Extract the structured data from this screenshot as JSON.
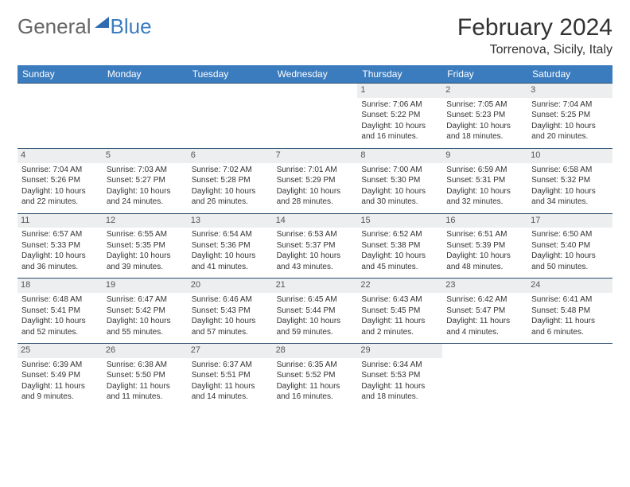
{
  "logo": {
    "word1": "General",
    "word2": "Blue"
  },
  "title": "February 2024",
  "location": "Torrenova, Sicily, Italy",
  "colors": {
    "header_bg": "#3b7cbf",
    "header_text": "#ffffff",
    "daynum_bg": "#eceeef",
    "week_border": "#2a4d6e",
    "text": "#333333"
  },
  "dow": [
    "Sunday",
    "Monday",
    "Tuesday",
    "Wednesday",
    "Thursday",
    "Friday",
    "Saturday"
  ],
  "weeks": [
    [
      null,
      null,
      null,
      null,
      {
        "n": "1",
        "sr": "Sunrise: 7:06 AM",
        "ss": "Sunset: 5:22 PM",
        "d1": "Daylight: 10 hours",
        "d2": "and 16 minutes."
      },
      {
        "n": "2",
        "sr": "Sunrise: 7:05 AM",
        "ss": "Sunset: 5:23 PM",
        "d1": "Daylight: 10 hours",
        "d2": "and 18 minutes."
      },
      {
        "n": "3",
        "sr": "Sunrise: 7:04 AM",
        "ss": "Sunset: 5:25 PM",
        "d1": "Daylight: 10 hours",
        "d2": "and 20 minutes."
      }
    ],
    [
      {
        "n": "4",
        "sr": "Sunrise: 7:04 AM",
        "ss": "Sunset: 5:26 PM",
        "d1": "Daylight: 10 hours",
        "d2": "and 22 minutes."
      },
      {
        "n": "5",
        "sr": "Sunrise: 7:03 AM",
        "ss": "Sunset: 5:27 PM",
        "d1": "Daylight: 10 hours",
        "d2": "and 24 minutes."
      },
      {
        "n": "6",
        "sr": "Sunrise: 7:02 AM",
        "ss": "Sunset: 5:28 PM",
        "d1": "Daylight: 10 hours",
        "d2": "and 26 minutes."
      },
      {
        "n": "7",
        "sr": "Sunrise: 7:01 AM",
        "ss": "Sunset: 5:29 PM",
        "d1": "Daylight: 10 hours",
        "d2": "and 28 minutes."
      },
      {
        "n": "8",
        "sr": "Sunrise: 7:00 AM",
        "ss": "Sunset: 5:30 PM",
        "d1": "Daylight: 10 hours",
        "d2": "and 30 minutes."
      },
      {
        "n": "9",
        "sr": "Sunrise: 6:59 AM",
        "ss": "Sunset: 5:31 PM",
        "d1": "Daylight: 10 hours",
        "d2": "and 32 minutes."
      },
      {
        "n": "10",
        "sr": "Sunrise: 6:58 AM",
        "ss": "Sunset: 5:32 PM",
        "d1": "Daylight: 10 hours",
        "d2": "and 34 minutes."
      }
    ],
    [
      {
        "n": "11",
        "sr": "Sunrise: 6:57 AM",
        "ss": "Sunset: 5:33 PM",
        "d1": "Daylight: 10 hours",
        "d2": "and 36 minutes."
      },
      {
        "n": "12",
        "sr": "Sunrise: 6:55 AM",
        "ss": "Sunset: 5:35 PM",
        "d1": "Daylight: 10 hours",
        "d2": "and 39 minutes."
      },
      {
        "n": "13",
        "sr": "Sunrise: 6:54 AM",
        "ss": "Sunset: 5:36 PM",
        "d1": "Daylight: 10 hours",
        "d2": "and 41 minutes."
      },
      {
        "n": "14",
        "sr": "Sunrise: 6:53 AM",
        "ss": "Sunset: 5:37 PM",
        "d1": "Daylight: 10 hours",
        "d2": "and 43 minutes."
      },
      {
        "n": "15",
        "sr": "Sunrise: 6:52 AM",
        "ss": "Sunset: 5:38 PM",
        "d1": "Daylight: 10 hours",
        "d2": "and 45 minutes."
      },
      {
        "n": "16",
        "sr": "Sunrise: 6:51 AM",
        "ss": "Sunset: 5:39 PM",
        "d1": "Daylight: 10 hours",
        "d2": "and 48 minutes."
      },
      {
        "n": "17",
        "sr": "Sunrise: 6:50 AM",
        "ss": "Sunset: 5:40 PM",
        "d1": "Daylight: 10 hours",
        "d2": "and 50 minutes."
      }
    ],
    [
      {
        "n": "18",
        "sr": "Sunrise: 6:48 AM",
        "ss": "Sunset: 5:41 PM",
        "d1": "Daylight: 10 hours",
        "d2": "and 52 minutes."
      },
      {
        "n": "19",
        "sr": "Sunrise: 6:47 AM",
        "ss": "Sunset: 5:42 PM",
        "d1": "Daylight: 10 hours",
        "d2": "and 55 minutes."
      },
      {
        "n": "20",
        "sr": "Sunrise: 6:46 AM",
        "ss": "Sunset: 5:43 PM",
        "d1": "Daylight: 10 hours",
        "d2": "and 57 minutes."
      },
      {
        "n": "21",
        "sr": "Sunrise: 6:45 AM",
        "ss": "Sunset: 5:44 PM",
        "d1": "Daylight: 10 hours",
        "d2": "and 59 minutes."
      },
      {
        "n": "22",
        "sr": "Sunrise: 6:43 AM",
        "ss": "Sunset: 5:45 PM",
        "d1": "Daylight: 11 hours",
        "d2": "and 2 minutes."
      },
      {
        "n": "23",
        "sr": "Sunrise: 6:42 AM",
        "ss": "Sunset: 5:47 PM",
        "d1": "Daylight: 11 hours",
        "d2": "and 4 minutes."
      },
      {
        "n": "24",
        "sr": "Sunrise: 6:41 AM",
        "ss": "Sunset: 5:48 PM",
        "d1": "Daylight: 11 hours",
        "d2": "and 6 minutes."
      }
    ],
    [
      {
        "n": "25",
        "sr": "Sunrise: 6:39 AM",
        "ss": "Sunset: 5:49 PM",
        "d1": "Daylight: 11 hours",
        "d2": "and 9 minutes."
      },
      {
        "n": "26",
        "sr": "Sunrise: 6:38 AM",
        "ss": "Sunset: 5:50 PM",
        "d1": "Daylight: 11 hours",
        "d2": "and 11 minutes."
      },
      {
        "n": "27",
        "sr": "Sunrise: 6:37 AM",
        "ss": "Sunset: 5:51 PM",
        "d1": "Daylight: 11 hours",
        "d2": "and 14 minutes."
      },
      {
        "n": "28",
        "sr": "Sunrise: 6:35 AM",
        "ss": "Sunset: 5:52 PM",
        "d1": "Daylight: 11 hours",
        "d2": "and 16 minutes."
      },
      {
        "n": "29",
        "sr": "Sunrise: 6:34 AM",
        "ss": "Sunset: 5:53 PM",
        "d1": "Daylight: 11 hours",
        "d2": "and 18 minutes."
      },
      null,
      null
    ]
  ]
}
